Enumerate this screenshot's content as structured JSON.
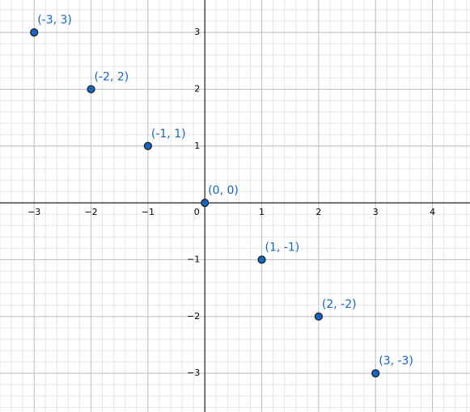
{
  "chart_data": {
    "type": "scatter",
    "x": [
      -3,
      -2,
      -1,
      0,
      1,
      2,
      3
    ],
    "series": [
      {
        "color": "#1565c0",
        "values": [
          3,
          2,
          1,
          0,
          -1,
          -2,
          -3
        ],
        "value_labels": [
          "(-3, 3)",
          "(-2, 2)",
          "(-1, 1)",
          "(0, 0)",
          "(1, -1)",
          "(2, -2)",
          "(3, -3)"
        ]
      }
    ],
    "xlim": [
      -3.6,
      4.66
    ],
    "ylim": [
      -3.68,
      3.57
    ],
    "xticks": [
      {
        "value": -3,
        "label": "−3"
      },
      {
        "value": -2,
        "label": "−2"
      },
      {
        "value": -1,
        "label": "−1"
      },
      0,
      1,
      2,
      3,
      4
    ],
    "yticks": [
      {
        "value": -3,
        "label": "−3"
      },
      {
        "value": -2,
        "label": "−2"
      },
      {
        "value": -1,
        "label": "−1"
      },
      1,
      2,
      3
    ],
    "grid": true,
    "minor_grid_divisions": 5
  }
}
